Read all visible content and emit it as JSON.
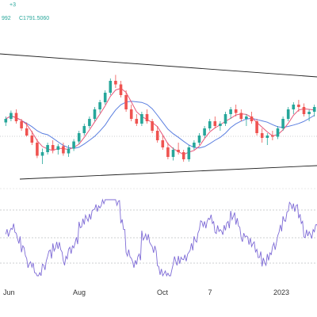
{
  "header": {
    "ohlc_fragment_1": "+3",
    "ohlc_fragment_2": "992",
    "close_label": "C1791.5060"
  },
  "colors": {
    "up": "#26a69a",
    "down": "#ef5350",
    "ma_fast": "#e8577a",
    "ma_slow": "#5b7fe0",
    "oscillator": "#7e6bd6",
    "trendline": "#222222",
    "level_line": "#9aa0a6",
    "header_text": "#26a69a"
  },
  "chart_data": [
    {
      "type": "candlestick",
      "x_tick_labels": [
        "Jun",
        "Aug",
        "Oct",
        "7",
        "2023"
      ],
      "series": [
        {
          "name": "candles",
          "ohlc": [
            [
              0.47,
              0.52,
              0.44,
              0.5
            ],
            [
              0.5,
              0.57,
              0.48,
              0.55
            ],
            [
              0.55,
              0.58,
              0.46,
              0.48
            ],
            [
              0.48,
              0.5,
              0.4,
              0.42
            ],
            [
              0.42,
              0.47,
              0.35,
              0.36
            ],
            [
              0.36,
              0.4,
              0.28,
              0.3
            ],
            [
              0.3,
              0.33,
              0.17,
              0.19
            ],
            [
              0.19,
              0.25,
              0.12,
              0.22
            ],
            [
              0.22,
              0.3,
              0.2,
              0.28
            ],
            [
              0.28,
              0.32,
              0.21,
              0.24
            ],
            [
              0.24,
              0.29,
              0.2,
              0.27
            ],
            [
              0.27,
              0.3,
              0.19,
              0.21
            ],
            [
              0.21,
              0.28,
              0.18,
              0.25
            ],
            [
              0.25,
              0.33,
              0.23,
              0.31
            ],
            [
              0.31,
              0.4,
              0.29,
              0.38
            ],
            [
              0.38,
              0.46,
              0.36,
              0.44
            ],
            [
              0.44,
              0.52,
              0.42,
              0.5
            ],
            [
              0.5,
              0.6,
              0.48,
              0.58
            ],
            [
              0.58,
              0.66,
              0.55,
              0.64
            ],
            [
              0.64,
              0.74,
              0.62,
              0.72
            ],
            [
              0.72,
              0.84,
              0.7,
              0.82
            ],
            [
              0.82,
              0.87,
              0.76,
              0.79
            ],
            [
              0.79,
              0.82,
              0.68,
              0.7
            ],
            [
              0.7,
              0.74,
              0.56,
              0.58
            ],
            [
              0.58,
              0.62,
              0.48,
              0.5
            ],
            [
              0.5,
              0.54,
              0.44,
              0.46
            ],
            [
              0.46,
              0.56,
              0.44,
              0.54
            ],
            [
              0.54,
              0.58,
              0.46,
              0.48
            ],
            [
              0.48,
              0.5,
              0.38,
              0.4
            ],
            [
              0.4,
              0.44,
              0.3,
              0.32
            ],
            [
              0.32,
              0.36,
              0.24,
              0.26
            ],
            [
              0.26,
              0.3,
              0.16,
              0.18
            ],
            [
              0.18,
              0.26,
              0.15,
              0.24
            ],
            [
              0.24,
              0.3,
              0.2,
              0.22
            ],
            [
              0.22,
              0.24,
              0.14,
              0.16
            ],
            [
              0.16,
              0.28,
              0.14,
              0.26
            ],
            [
              0.26,
              0.32,
              0.24,
              0.3
            ],
            [
              0.3,
              0.38,
              0.28,
              0.36
            ],
            [
              0.36,
              0.44,
              0.34,
              0.42
            ],
            [
              0.42,
              0.5,
              0.4,
              0.48
            ],
            [
              0.48,
              0.52,
              0.42,
              0.44
            ],
            [
              0.44,
              0.48,
              0.4,
              0.46
            ],
            [
              0.46,
              0.56,
              0.44,
              0.54
            ],
            [
              0.54,
              0.6,
              0.5,
              0.58
            ],
            [
              0.58,
              0.62,
              0.52,
              0.55
            ],
            [
              0.55,
              0.58,
              0.48,
              0.5
            ],
            [
              0.5,
              0.54,
              0.44,
              0.52
            ],
            [
              0.52,
              0.56,
              0.46,
              0.48
            ],
            [
              0.48,
              0.5,
              0.36,
              0.38
            ],
            [
              0.38,
              0.42,
              0.3,
              0.34
            ],
            [
              0.34,
              0.38,
              0.28,
              0.36
            ],
            [
              0.36,
              0.4,
              0.32,
              0.35
            ],
            [
              0.35,
              0.44,
              0.33,
              0.42
            ],
            [
              0.42,
              0.52,
              0.4,
              0.5
            ],
            [
              0.5,
              0.6,
              0.48,
              0.58
            ],
            [
              0.58,
              0.64,
              0.54,
              0.62
            ],
            [
              0.62,
              0.66,
              0.56,
              0.6
            ],
            [
              0.6,
              0.63,
              0.52,
              0.54
            ],
            [
              0.54,
              0.58,
              0.48,
              0.56
            ],
            [
              0.56,
              0.62,
              0.52,
              0.6
            ]
          ]
        },
        {
          "name": "moving-average-fast"
        },
        {
          "name": "moving-average-slow"
        }
      ]
    },
    {
      "type": "line",
      "x_tick_labels": [
        "Jun",
        "Aug",
        "Oct",
        "7",
        "2023"
      ],
      "y_reference_levels": [
        "upper",
        "middle",
        "lower"
      ],
      "series": [
        {
          "name": "oscillator"
        }
      ]
    }
  ]
}
